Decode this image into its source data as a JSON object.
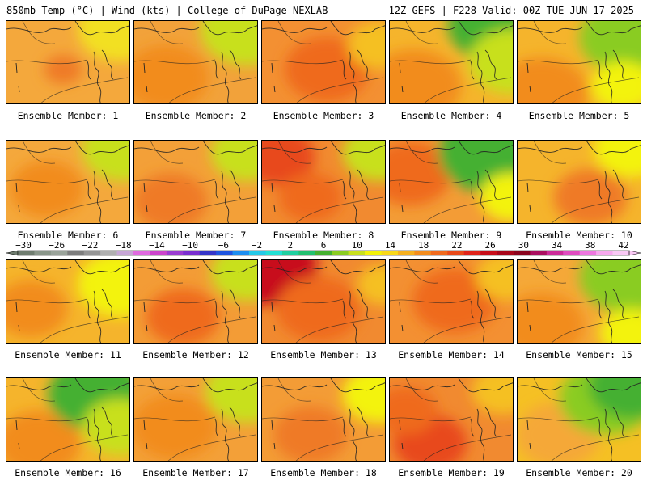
{
  "header": {
    "left": "850mb Temp (°C) | Wind (kts) | College of DuPage NEXLAB",
    "right": "12Z GEFS | F228 Valid: 00Z TUE JUN 17 2025"
  },
  "colorbar": {
    "ticks": [
      "-30",
      "-26",
      "-22",
      "-18",
      "-14",
      "-10",
      "-6",
      "-2",
      "2",
      "6",
      "10",
      "14",
      "18",
      "22",
      "26",
      "30",
      "34",
      "38",
      "42"
    ],
    "colors": [
      "#6f7c6f",
      "#8a968a",
      "#9aa39a",
      "#7d7d7d",
      "#959595",
      "#b0b0b0",
      "#c7a6d6",
      "#e06ae0",
      "#cc44cc",
      "#9a3cd1",
      "#7a2fd0",
      "#3535c8",
      "#1f55e0",
      "#1e8ef0",
      "#25c8e8",
      "#22e0d4",
      "#1fcfa0",
      "#22c070",
      "#44b030",
      "#8acc22",
      "#c8e01e",
      "#f3f30a",
      "#f8d81a",
      "#f5b020",
      "#f28c1e",
      "#ef6a1e",
      "#e84a1a",
      "#e0241a",
      "#c80e1a",
      "#a8061a",
      "#8a041e",
      "#aa1060",
      "#cc2c99",
      "#e04cc0",
      "#ee77e0",
      "#f6a8ee",
      "#f8c8f4"
    ]
  },
  "panels": [
    {
      "label": "Ensemble Member: 1"
    },
    {
      "label": "Ensemble Member: 2"
    },
    {
      "label": "Ensemble Member: 3"
    },
    {
      "label": "Ensemble Member: 4"
    },
    {
      "label": "Ensemble Member: 5"
    },
    {
      "label": "Ensemble Member: 6"
    },
    {
      "label": "Ensemble Member: 7"
    },
    {
      "label": "Ensemble Member: 8"
    },
    {
      "label": "Ensemble Member: 9"
    },
    {
      "label": "Ensemble Member: 10"
    },
    {
      "label": "Ensemble Member: 11"
    },
    {
      "label": "Ensemble Member: 12"
    },
    {
      "label": "Ensemble Member: 13"
    },
    {
      "label": "Ensemble Member: 14"
    },
    {
      "label": "Ensemble Member: 15"
    },
    {
      "label": "Ensemble Member: 16"
    },
    {
      "label": "Ensemble Member: 17"
    },
    {
      "label": "Ensemble Member: 18"
    },
    {
      "label": "Ensemble Member: 19"
    },
    {
      "label": "Ensemble Member: 20"
    }
  ]
}
